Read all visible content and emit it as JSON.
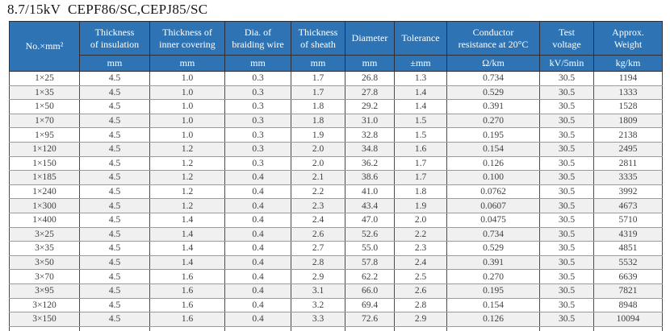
{
  "title": "8.7/15kV  CEPF86/SC,CEPJ85/SC",
  "colors": {
    "header_bg": "#2e74b5",
    "header_text": "#ffffff",
    "row_stripe": "#f0f0f0",
    "body_text": "#3f3f3f",
    "grid_line": "#4c4c4c",
    "row_line": "#9b9b9b"
  },
  "table": {
    "size_header": "No.×mm²",
    "columns": [
      {
        "label": "Thickness\nof insulation",
        "unit": "mm"
      },
      {
        "label": "Thickness of\ninner covering",
        "unit": "mm"
      },
      {
        "label": "Dia. of\nbraiding wire",
        "unit": "mm"
      },
      {
        "label": "Thickness\nof sheath",
        "unit": "mm"
      },
      {
        "label": "Diameter",
        "unit": "mm"
      },
      {
        "label": "Tolerance",
        "unit": "±mm"
      },
      {
        "label": "Conductor\nresistance at 20°C",
        "unit": "Ω/km"
      },
      {
        "label": "Test\nvoltage",
        "unit": "kV/5min"
      },
      {
        "label": "Approx.\nWeight",
        "unit": "kg/km"
      }
    ],
    "rows": [
      [
        "1×25",
        "4.5",
        "1.0",
        "0.3",
        "1.7",
        "26.8",
        "1.3",
        "0.734",
        "30.5",
        "1194"
      ],
      [
        "1×35",
        "4.5",
        "1.0",
        "0.3",
        "1.7",
        "27.8",
        "1.4",
        "0.529",
        "30.5",
        "1333"
      ],
      [
        "1×50",
        "4.5",
        "1.0",
        "0.3",
        "1.8",
        "29.2",
        "1.4",
        "0.391",
        "30.5",
        "1528"
      ],
      [
        "1×70",
        "4.5",
        "1.0",
        "0.3",
        "1.8",
        "31.0",
        "1.5",
        "0.270",
        "30.5",
        "1809"
      ],
      [
        "1×95",
        "4.5",
        "1.0",
        "0.3",
        "1.9",
        "32.8",
        "1.5",
        "0.195",
        "30.5",
        "2138"
      ],
      [
        "1×120",
        "4.5",
        "1.2",
        "0.3",
        "2.0",
        "34.8",
        "1.6",
        "0.154",
        "30.5",
        "2495"
      ],
      [
        "1×150",
        "4.5",
        "1.2",
        "0.3",
        "2.0",
        "36.2",
        "1.7",
        "0.126",
        "30.5",
        "2811"
      ],
      [
        "1×185",
        "4.5",
        "1.2",
        "0.4",
        "2.1",
        "38.6",
        "1.7",
        "0.100",
        "30.5",
        "3335"
      ],
      [
        "1×240",
        "4.5",
        "1.2",
        "0.4",
        "2.2",
        "41.0",
        "1.8",
        "0.0762",
        "30.5",
        "3992"
      ],
      [
        "1×300",
        "4.5",
        "1.2",
        "0.4",
        "2.3",
        "43.4",
        "1.9",
        "0.0607",
        "30.5",
        "4673"
      ],
      [
        "1×400",
        "4.5",
        "1.4",
        "0.4",
        "2.4",
        "47.0",
        "2.0",
        "0.0475",
        "30.5",
        "5710"
      ],
      [
        "3×25",
        "4.5",
        "1.4",
        "0.4",
        "2.6",
        "52.6",
        "2.2",
        "0.734",
        "30.5",
        "4319"
      ],
      [
        "3×35",
        "4.5",
        "1.4",
        "0.4",
        "2.7",
        "55.0",
        "2.3",
        "0.529",
        "30.5",
        "4851"
      ],
      [
        "3×50",
        "4.5",
        "1.4",
        "0.4",
        "2.8",
        "57.8",
        "2.4",
        "0.391",
        "30.5",
        "5532"
      ],
      [
        "3×70",
        "4.5",
        "1.6",
        "0.4",
        "2.9",
        "62.2",
        "2.5",
        "0.270",
        "30.5",
        "6639"
      ],
      [
        "3×95",
        "4.5",
        "1.6",
        "0.4",
        "3.1",
        "66.0",
        "2.6",
        "0.195",
        "30.5",
        "7821"
      ],
      [
        "3×120",
        "4.5",
        "1.6",
        "0.4",
        "3.2",
        "69.4",
        "2.8",
        "0.154",
        "30.5",
        "8948"
      ],
      [
        "3×150",
        "4.5",
        "1.6",
        "0.4",
        "3.3",
        "72.6",
        "2.9",
        "0.126",
        "30.5",
        "10094"
      ]
    ]
  }
}
